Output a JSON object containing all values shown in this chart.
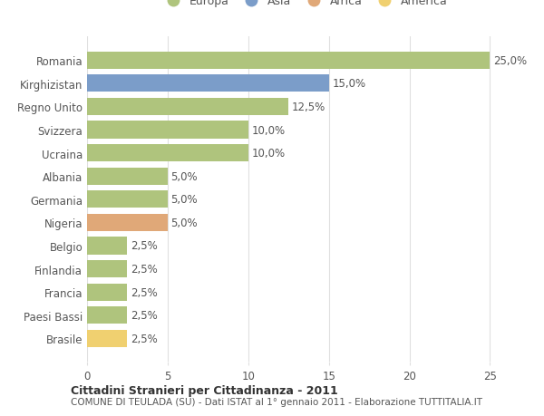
{
  "countries": [
    "Romania",
    "Kirghizistan",
    "Regno Unito",
    "Svizzera",
    "Ucraina",
    "Albania",
    "Germania",
    "Nigeria",
    "Belgio",
    "Finlandia",
    "Francia",
    "Paesi Bassi",
    "Brasile"
  ],
  "values": [
    25.0,
    15.0,
    12.5,
    10.0,
    10.0,
    5.0,
    5.0,
    5.0,
    2.5,
    2.5,
    2.5,
    2.5,
    2.5
  ],
  "continents": [
    "Europa",
    "Asia",
    "Europa",
    "Europa",
    "Europa",
    "Europa",
    "Europa",
    "Africa",
    "Europa",
    "Europa",
    "Europa",
    "Europa",
    "America"
  ],
  "colors": {
    "Europa": "#afc47d",
    "Asia": "#7b9dc9",
    "Africa": "#e0a878",
    "America": "#f0d070"
  },
  "title1": "Cittadini Stranieri per Cittadinanza - 2011",
  "title2": "COMUNE DI TEULADA (SU) - Dati ISTAT al 1° gennaio 2011 - Elaborazione TUTTITALIA.IT",
  "xlim": [
    0,
    27
  ],
  "xticks": [
    0,
    5,
    10,
    15,
    20,
    25
  ],
  "bg_color": "#ffffff",
  "grid_color": "#e0e0e0",
  "bar_height": 0.75,
  "font_color": "#555555",
  "label_fontsize": 8.5,
  "tick_fontsize": 8.5,
  "legend_fontsize": 9
}
